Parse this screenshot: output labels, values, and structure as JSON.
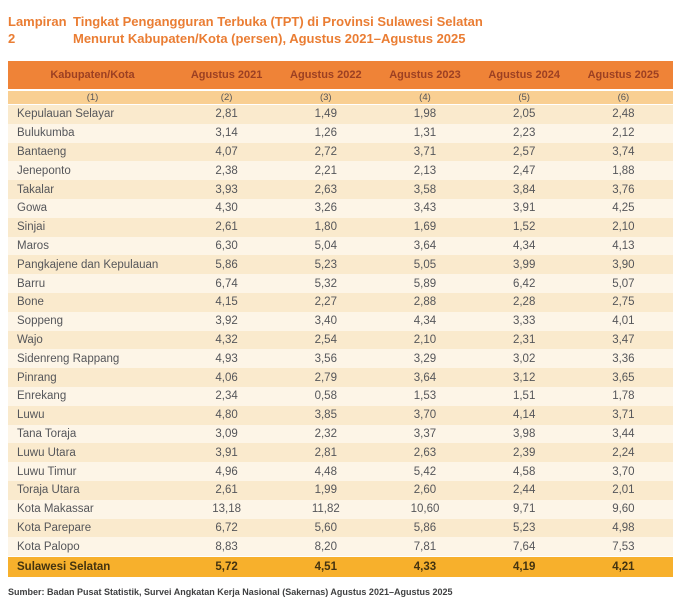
{
  "page": {
    "label": "Lampiran 2",
    "title_line1": "Tingkat Pengangguran Terbuka (TPT) di Provinsi Sulawesi Selatan",
    "title_line2": "Menurut Kabupaten/Kota (persen), Agustus 2021–Agustus 2025",
    "source": "Sumber: Badan Pusat Statistik, Survei Angkatan Kerja Nasional (Sakernas) Agustus 2021–Agustus 2025"
  },
  "colors": {
    "title": "#EA7D33",
    "header_bg": "#EF8337",
    "header_text": "#9C4023",
    "subheader_bg": "#F9CF92",
    "row_odd_bg": "#FAEACD",
    "row_even_bg": "#FDF5E7",
    "total_bg": "#F7B02C",
    "total_text": "#443310",
    "body_text": "#55565A"
  },
  "chart_data": {
    "type": "table",
    "title": "Tingkat Pengangguran Terbuka (TPT) di Provinsi Sulawesi Selatan Menurut Kabupaten/Kota (persen), Agustus 2021–Agustus 2025",
    "columns": [
      "Kabupaten/Kota",
      "Agustus 2021",
      "Agustus 2022",
      "Agustus 2023",
      "Agustus 2024",
      "Agustus 2025"
    ],
    "column_indices": [
      "(1)",
      "(2)",
      "(3)",
      "(4)",
      "(5)",
      "(6)"
    ],
    "rows": [
      [
        "Kepulauan Selayar",
        "2,81",
        "1,49",
        "1,98",
        "2,05",
        "2,48"
      ],
      [
        "Bulukumba",
        "3,14",
        "1,26",
        "1,31",
        "2,23",
        "2,12"
      ],
      [
        "Bantaeng",
        "4,07",
        "2,72",
        "3,71",
        "2,57",
        "3,74"
      ],
      [
        "Jeneponto",
        "2,38",
        "2,21",
        "2,13",
        "2,47",
        "1,88"
      ],
      [
        "Takalar",
        "3,93",
        "2,63",
        "3,58",
        "3,84",
        "3,76"
      ],
      [
        "Gowa",
        "4,30",
        "3,26",
        "3,43",
        "3,91",
        "4,25"
      ],
      [
        "Sinjai",
        "2,61",
        "1,80",
        "1,69",
        "1,52",
        "2,10"
      ],
      [
        "Maros",
        "6,30",
        "5,04",
        "3,64",
        "4,34",
        "4,13"
      ],
      [
        "Pangkajene dan Kepulauan",
        "5,86",
        "5,23",
        "5,05",
        "3,99",
        "3,90"
      ],
      [
        "Barru",
        "6,74",
        "5,32",
        "5,89",
        "6,42",
        "5,07"
      ],
      [
        "Bone",
        "4,15",
        "2,27",
        "2,88",
        "2,28",
        "2,75"
      ],
      [
        "Soppeng",
        "3,92",
        "3,40",
        "4,34",
        "3,33",
        "4,01"
      ],
      [
        "Wajo",
        "4,32",
        "2,54",
        "2,10",
        "2,31",
        "3,47"
      ],
      [
        "Sidenreng Rappang",
        "4,93",
        "3,56",
        "3,29",
        "3,02",
        "3,36"
      ],
      [
        "Pinrang",
        "4,06",
        "2,79",
        "3,64",
        "3,12",
        "3,65"
      ],
      [
        "Enrekang",
        "2,34",
        "0,58",
        "1,53",
        "1,51",
        "1,78"
      ],
      [
        "Luwu",
        "4,80",
        "3,85",
        "3,70",
        "4,14",
        "3,71"
      ],
      [
        "Tana Toraja",
        "3,09",
        "2,32",
        "3,37",
        "3,98",
        "3,44"
      ],
      [
        "Luwu Utara",
        "3,91",
        "2,81",
        "2,63",
        "2,39",
        "2,24"
      ],
      [
        "Luwu Timur",
        "4,96",
        "4,48",
        "5,42",
        "4,58",
        "3,70"
      ],
      [
        "Toraja Utara",
        "2,61",
        "1,99",
        "2,60",
        "2,44",
        "2,01"
      ],
      [
        "Kota Makassar",
        "13,18",
        "11,82",
        "10,60",
        "9,71",
        "9,60"
      ],
      [
        "Kota Parepare",
        "6,72",
        "5,60",
        "5,86",
        "5,23",
        "4,98"
      ],
      [
        "Kota Palopo",
        "8,83",
        "8,20",
        "7,81",
        "7,64",
        "7,53"
      ]
    ],
    "total_row": [
      "Sulawesi Selatan",
      "5,72",
      "4,51",
      "4,33",
      "4,19",
      "4,21"
    ]
  }
}
